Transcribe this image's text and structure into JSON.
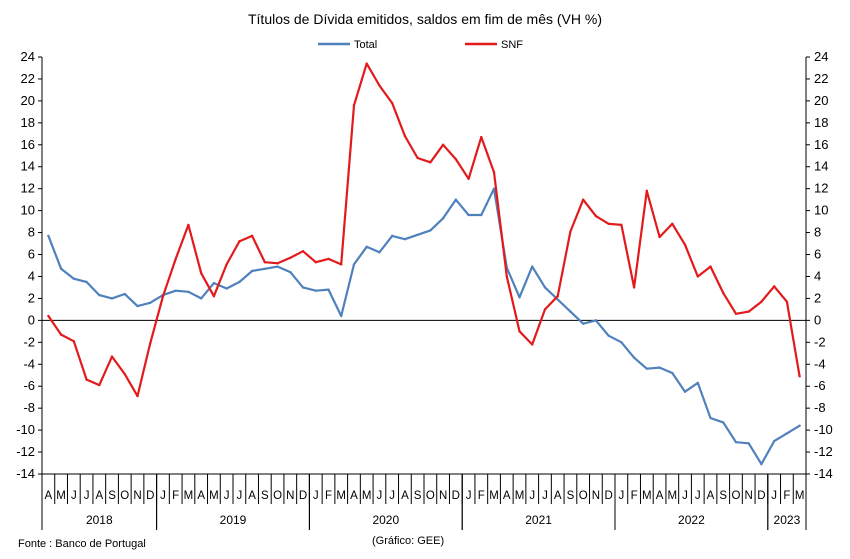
{
  "chart_data": {
    "type": "line",
    "title": "Títulos de Dívida emitidos, saldos em fim de mês  (VH %)",
    "y_ticks": [
      "24",
      "22",
      "20",
      "18",
      "16",
      "14",
      "12",
      "10",
      "8",
      "6",
      "4",
      "2",
      "0",
      "-2",
      "-4",
      "-6",
      "-8",
      "-10",
      "-12",
      "-14"
    ],
    "ylim": [
      -14,
      24
    ],
    "grid": false,
    "legend": "top-center",
    "month_labels": [
      "A",
      "M",
      "J",
      "J",
      "A",
      "S",
      "O",
      "N",
      "D",
      "J",
      "F",
      "M",
      "A",
      "M",
      "J",
      "J",
      "A",
      "S",
      "O",
      "N",
      "D",
      "J",
      "F",
      "M",
      "A",
      "M",
      "J",
      "J",
      "A",
      "S",
      "O",
      "N",
      "D",
      "J",
      "F",
      "M",
      "A",
      "M",
      "J",
      "J",
      "A",
      "S",
      "O",
      "N",
      "D",
      "J",
      "F",
      "M",
      "A",
      "M",
      "J",
      "J",
      "A",
      "S",
      "O",
      "N",
      "D",
      "J",
      "F",
      "M"
    ],
    "years": [
      {
        "label": "2018",
        "start": 0,
        "count": 9
      },
      {
        "label": "2019",
        "start": 9,
        "count": 12
      },
      {
        "label": "2020",
        "start": 21,
        "count": 12
      },
      {
        "label": "2021",
        "start": 33,
        "count": 12
      },
      {
        "label": "2022",
        "start": 45,
        "count": 12
      },
      {
        "label": "2023",
        "start": 57,
        "count": 3
      }
    ],
    "series": [
      {
        "name": "Total",
        "color": "#4F81BD",
        "values": [
          7.7,
          4.7,
          3.8,
          3.5,
          2.3,
          2.0,
          2.4,
          1.3,
          1.6,
          2.3,
          2.7,
          2.6,
          2.0,
          3.4,
          2.9,
          3.5,
          4.5,
          4.7,
          4.9,
          4.4,
          3.0,
          2.7,
          2.8,
          0.4,
          5.1,
          6.7,
          6.2,
          7.7,
          7.4,
          7.8,
          8.2,
          9.3,
          11.0,
          9.6,
          9.6,
          12.0,
          4.8,
          2.1,
          4.9,
          3.0,
          1.9,
          0.8,
          -0.3,
          0.0,
          -1.4,
          -2.0,
          -3.4,
          -4.4,
          -4.3,
          -4.8,
          -6.5,
          -5.7,
          -8.9,
          -9.3,
          -11.1,
          -11.2,
          -13.1,
          -11.0,
          -10.3,
          -9.6
        ]
      },
      {
        "name": "SNF",
        "color": "#E31A1C",
        "values": [
          0.4,
          -1.3,
          -1.9,
          -5.4,
          -5.9,
          -3.3,
          -4.9,
          -6.9,
          -2.1,
          2.2,
          5.6,
          8.7,
          4.3,
          2.2,
          5.1,
          7.2,
          7.7,
          5.3,
          5.2,
          5.7,
          6.3,
          5.3,
          5.6,
          5.1,
          19.6,
          23.4,
          21.4,
          19.8,
          16.8,
          14.8,
          14.4,
          16.0,
          14.7,
          12.9,
          16.7,
          13.5,
          4.0,
          -1.0,
          -2.2,
          1.0,
          2.2,
          8.1,
          11.0,
          9.5,
          8.8,
          8.7,
          3.0,
          11.8,
          7.6,
          8.8,
          6.9,
          4.0,
          4.9,
          2.5,
          0.6,
          0.8,
          1.7,
          3.1,
          1.7,
          -5.1
        ]
      }
    ]
  },
  "footer": {
    "source": "Fonte : Banco de Portugal",
    "credit": "(Gráfico: GEE)"
  }
}
